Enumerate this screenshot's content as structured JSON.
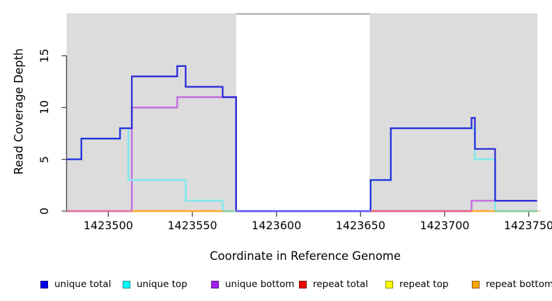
{
  "chart_data": {
    "type": "line",
    "subtype": "step-coverage",
    "title": "",
    "xlabel": "Coordinate in Reference Genome",
    "ylabel": "Read Coverage Depth",
    "xlim": [
      1423475.2,
      1423757.0
    ],
    "ylim": [
      0,
      19.1
    ],
    "grid": false,
    "legend_position": "bottom",
    "x_ticks": [
      1423500,
      1423550,
      1423600,
      1423650,
      1423700,
      1423750
    ],
    "x_tick_labels": [
      "1423500",
      "1423550",
      "1423600",
      "1423650",
      "1423700",
      "1423750"
    ],
    "y_ticks": [
      0,
      5,
      10,
      15
    ],
    "y_tick_labels": [
      "0",
      "5",
      "10",
      "15"
    ],
    "background_regions": [
      {
        "name": "covered-region-left",
        "x0": 1423475.2,
        "x1": 1423576.2,
        "fill": "#dcdcdc"
      },
      {
        "name": "uncovered-gap",
        "x0": 1423576.2,
        "x1": 1423655.4,
        "fill": "#ffffff",
        "top_border": "#8a8a8a"
      },
      {
        "name": "covered-region-right",
        "x0": 1423655.4,
        "x1": 1423755.2,
        "fill": "#dcdcdc"
      }
    ],
    "series": [
      {
        "name": "repeat total",
        "legend_color": "#ee0000",
        "line_color": "#e65f7c",
        "width": 1.6,
        "step": true,
        "points": [
          [
            1423475.2,
            0
          ],
          [
            1423757.0,
            0
          ]
        ]
      },
      {
        "name": "repeat top",
        "legend_color": "#ffff00",
        "line_color": "#ffe24d",
        "width": 1.6,
        "step": true,
        "points": [
          [
            1423475.2,
            0
          ],
          [
            1423757.0,
            0
          ]
        ]
      },
      {
        "name": "repeat bottom",
        "legend_color": "#ffa500",
        "line_color": "#ffa424",
        "width": 1.6,
        "step": true,
        "points": [
          [
            1423475.2,
            0
          ],
          [
            1423757.0,
            0
          ]
        ]
      },
      {
        "name": "unique bottom",
        "legend_color": "#a020f0",
        "line_color": "#c274e0",
        "width": 2.6,
        "step": true,
        "points": [
          [
            1423475.2,
            0
          ],
          [
            1423514,
            10
          ],
          [
            1423541,
            11
          ],
          [
            1423576,
            0
          ],
          [
            1423716,
            1
          ],
          [
            1423755,
            1
          ]
        ]
      },
      {
        "name": "unique top",
        "legend_color": "#00ffff",
        "line_color": "#8be6ea",
        "width": 3,
        "step": true,
        "points": [
          [
            1423475.2,
            5
          ],
          [
            1423484,
            7
          ],
          [
            1423507,
            8
          ],
          [
            1423512,
            3
          ],
          [
            1423546,
            1
          ],
          [
            1423568,
            0
          ],
          [
            1423656,
            3
          ],
          [
            1423668,
            8
          ],
          [
            1423718,
            5
          ],
          [
            1423730,
            0
          ],
          [
            1423755,
            0
          ]
        ]
      },
      {
        "name": "unique total",
        "legend_color": "#0000ee",
        "line_color": "#2b2bda",
        "width": 2.3,
        "step": true,
        "points": [
          [
            1423475.2,
            5
          ],
          [
            1423484,
            7
          ],
          [
            1423507,
            8
          ],
          [
            1423514,
            13
          ],
          [
            1423541,
            14
          ],
          [
            1423546,
            12
          ],
          [
            1423568,
            11
          ],
          [
            1423576,
            0
          ],
          [
            1423656,
            3
          ],
          [
            1423668,
            8
          ],
          [
            1423716,
            9
          ],
          [
            1423718,
            6
          ],
          [
            1423730,
            1
          ],
          [
            1423755,
            1
          ]
        ]
      }
    ],
    "zero_line_segments": [
      {
        "x0": 1423475.2,
        "x1": 1423514,
        "color": "#e0719c"
      },
      {
        "x0": 1423514,
        "x1": 1423568,
        "color": "#ffa424"
      },
      {
        "x0": 1423568,
        "x1": 1423576,
        "color": "#8ecf9a"
      },
      {
        "x0": 1423576,
        "x1": 1423656,
        "color": "#6b57ee"
      },
      {
        "x0": 1423656,
        "x1": 1423716,
        "color": "#e65f7c"
      },
      {
        "x0": 1423716,
        "x1": 1423730,
        "color": "#ffa424"
      },
      {
        "x0": 1423730,
        "x1": 1423755,
        "color": "#8ecf9a"
      },
      {
        "x0": 1423755,
        "x1": 1423757,
        "color": "#f2c4ad"
      }
    ],
    "legend": [
      {
        "label": "unique total",
        "color": "#0000ee"
      },
      {
        "label": "unique top",
        "color": "#00ffff"
      },
      {
        "label": "unique bottom",
        "color": "#a020f0"
      },
      {
        "label": "repeat total",
        "color": "#ee0000"
      },
      {
        "label": "repeat top",
        "color": "#ffff00"
      },
      {
        "label": "repeat bottom",
        "color": "#ffa500"
      }
    ],
    "axis_color": "#404040"
  }
}
